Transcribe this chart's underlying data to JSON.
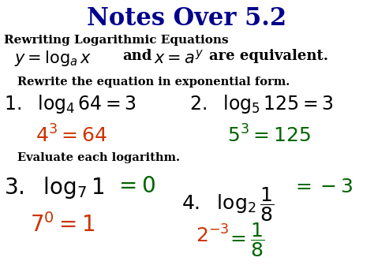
{
  "bg_color": "#FFFFFF",
  "black": "#000000",
  "orange": "#CC3300",
  "green": "#006400",
  "blue": "#00008B",
  "title": "Notes Over 5.2",
  "line1": "Rewriting Logarithmic Equations",
  "line2a": "$y = \\log_a x$",
  "line2b": "and",
  "line2c": "$x = a^y$",
  "line2d": "are equivalent.",
  "line3": "Rewrite the equation in exponential form.",
  "p1": "$1.\\ \\ \\log_4 64 = 3$",
  "p2": "$2.\\ \\ \\log_5 125 = 3$",
  "a1": "$4^3 = 64$",
  "a2": "$5^3=125$",
  "line4": "Evaluate each logarithm.",
  "p3a": "$3.\\ \\ \\log_7 1$",
  "p3b": "$= 0$",
  "a3": "$7^0 = 1$",
  "p4a": "$4.\\ \\ \\log_2 \\dfrac{1}{8} = -3$",
  "a4": "$2^{-3} = \\dfrac{1}{8}$"
}
